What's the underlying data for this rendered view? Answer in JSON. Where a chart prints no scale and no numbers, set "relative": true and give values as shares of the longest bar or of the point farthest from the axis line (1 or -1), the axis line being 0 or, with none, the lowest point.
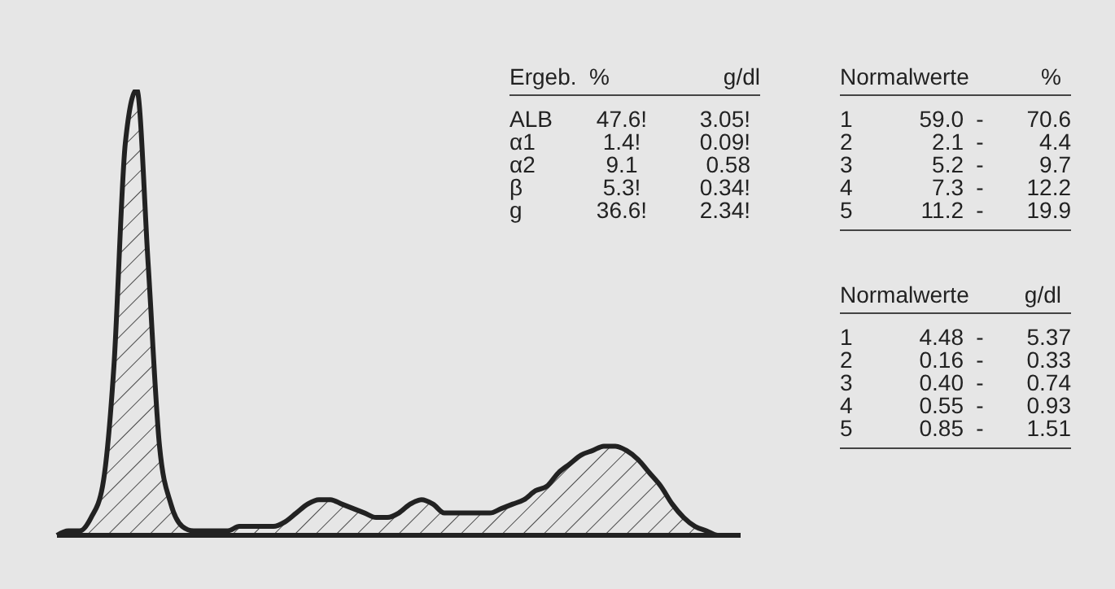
{
  "chart_data": {
    "type": "area",
    "relative": true,
    "categories": [
      null,
      null,
      null,
      null,
      null,
      null,
      null,
      null,
      null,
      null,
      null,
      null,
      null,
      null,
      null,
      null,
      null,
      null,
      null,
      null,
      null,
      null,
      null,
      null,
      null,
      null,
      null,
      null,
      null,
      null,
      null,
      null,
      null,
      null,
      null,
      null,
      null,
      null,
      null,
      null,
      null,
      null,
      null,
      null,
      null,
      null,
      null,
      null,
      null,
      null,
      null,
      null,
      null,
      null,
      null,
      null,
      null,
      null,
      null,
      null,
      null
    ],
    "series": [
      {
        "color": "#222222",
        "values": [
          0,
          0.01,
          0.01,
          0.04,
          0.11,
          0.38,
          0.88,
          1,
          0.61,
          0.2,
          0.07,
          0.02,
          0.01,
          0.01,
          0.01,
          0.01,
          0.02,
          0.02,
          0.02,
          0.02,
          0.03,
          0.05,
          0.07,
          0.08,
          0.08,
          0.07,
          0.06,
          0.05,
          0.04,
          0.04,
          0.05,
          0.07,
          0.08,
          0.07,
          0.05,
          0.05,
          0.05,
          0.05,
          0.05,
          0.06,
          0.07,
          0.08,
          0.1,
          0.11,
          0.14,
          0.16,
          0.18,
          0.19,
          0.2,
          0.2,
          0.19,
          0.17,
          0.14,
          0.11,
          0.07,
          0.04,
          0.02,
          0.01,
          0,
          0,
          0
        ]
      }
    ],
    "annotations": [
      "Ergeb. % g/dl",
      "ALB 47.6! 3.05!",
      "α1 1.4! 0.09!",
      "α2 9.1 0.58",
      "β 5.3! 0.34!",
      "g 36.6! 2.34!",
      "Normalwerte %",
      "1 59.0 - 70.6",
      "2 2.1 - 4.4",
      "3 5.2 - 9.7",
      "4 7.3 - 12.2",
      "5 11.2 - 19.9",
      "Normalwerte g/dl",
      "1 4.48 - 5.37",
      "2 0.16 - 0.33",
      "3 0.40 - 0.74",
      "4 0.55 - 0.93",
      "5 0.85 - 1.51"
    ]
  }
}
